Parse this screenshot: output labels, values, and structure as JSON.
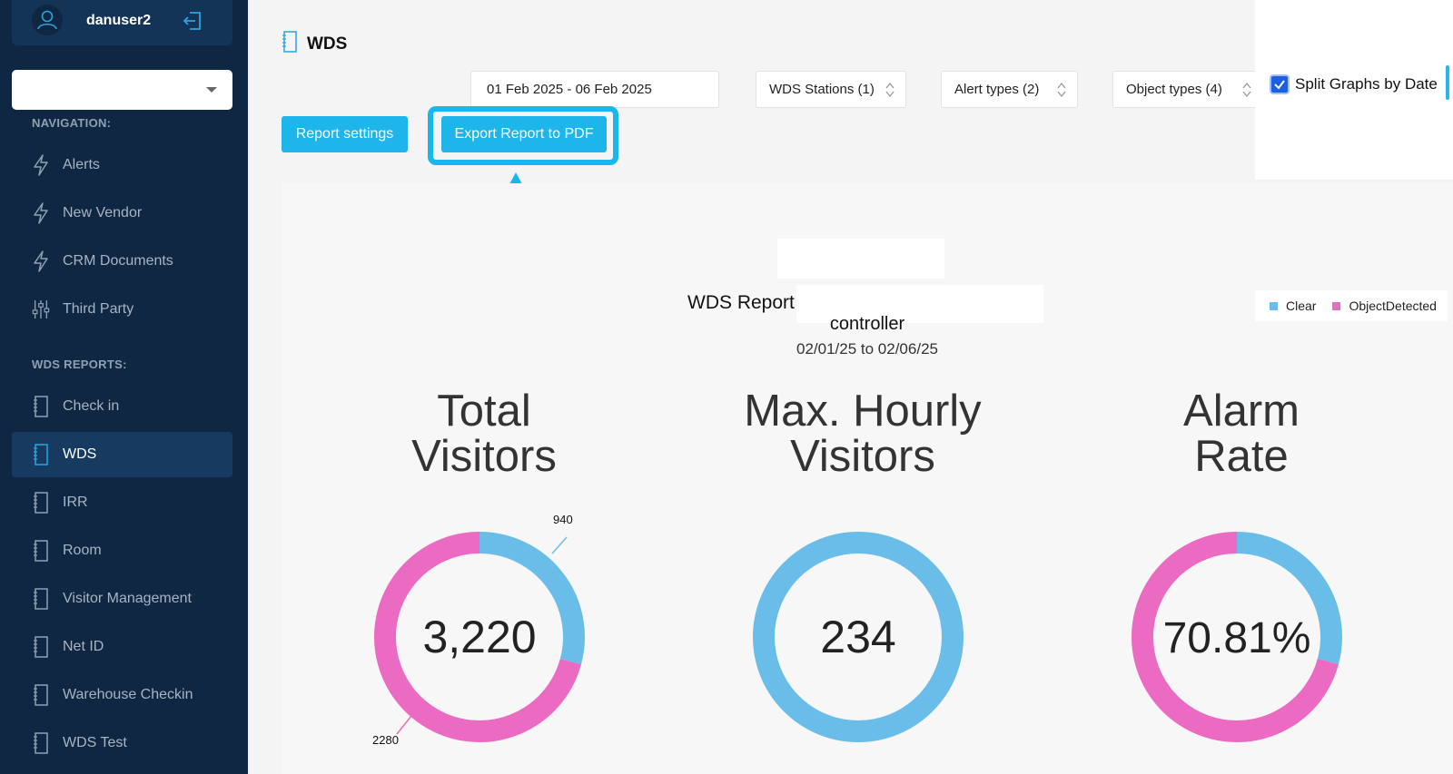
{
  "sidebar": {
    "username": "danuser2",
    "nav_heading": "NAVIGATION:",
    "nav_items": [
      {
        "label": "Alerts",
        "icon": "bolt-icon"
      },
      {
        "label": "New Vendor",
        "icon": "bolt-icon"
      },
      {
        "label": "CRM Documents",
        "icon": "bolt-icon"
      },
      {
        "label": "Third Party",
        "icon": "sliders-icon"
      }
    ],
    "reports_heading": "WDS REPORTS:",
    "report_items": [
      {
        "label": "Check in",
        "icon": "notebook-icon"
      },
      {
        "label": "WDS",
        "icon": "notebook-icon",
        "active": true
      },
      {
        "label": "IRR",
        "icon": "notebook-icon"
      },
      {
        "label": "Room",
        "icon": "notebook-icon"
      },
      {
        "label": "Visitor Management",
        "icon": "notebook-icon"
      },
      {
        "label": "Net ID",
        "icon": "notebook-icon"
      },
      {
        "label": "Warehouse Checkin",
        "icon": "notebook-icon"
      },
      {
        "label": "WDS Test",
        "icon": "notebook-icon"
      }
    ]
  },
  "header": {
    "title": "WDS",
    "date_range": "01 Feb 2025 - 06 Feb 2025",
    "filters": {
      "stations": "WDS Stations (1)",
      "alert_types": "Alert types (2)",
      "object_types": "Object types (4)"
    },
    "split_graphs_label": "Split Graphs by Date",
    "split_graphs_checked": true,
    "report_settings_label": "Report settings",
    "export_pdf_label": "Export Report to PDF"
  },
  "colors": {
    "sidebar_bg": "#0f2742",
    "accent": "#1eb5ea",
    "clear": "#6bbde9",
    "object_detected": "#ec6bc2"
  },
  "report": {
    "title": "WDS Report",
    "subtitle": "controller",
    "date_span": "02/01/25 to 02/06/25",
    "legend": [
      "Clear",
      "ObjectDetected"
    ],
    "metrics": [
      {
        "title_line1": "Total",
        "title_line2": "Visitors",
        "value": "3,220"
      },
      {
        "title_line1": "Max. Hourly",
        "title_line2": "Visitors",
        "value": "234"
      },
      {
        "title_line1": "Alarm",
        "title_line2": "Rate",
        "value": "70.81%"
      }
    ]
  },
  "chart_data": [
    {
      "type": "pie",
      "title": "Total Visitors",
      "categories": [
        "Clear",
        "ObjectDetected"
      ],
      "values": [
        940,
        2280
      ],
      "data_labels": [
        "940",
        "2280"
      ]
    },
    {
      "type": "pie",
      "title": "Max. Hourly Visitors",
      "categories": [
        "Clear"
      ],
      "values": [
        234
      ]
    },
    {
      "type": "pie",
      "title": "Alarm Rate",
      "categories": [
        "Clear",
        "ObjectDetected"
      ],
      "values": [
        29.19,
        70.81
      ]
    }
  ]
}
